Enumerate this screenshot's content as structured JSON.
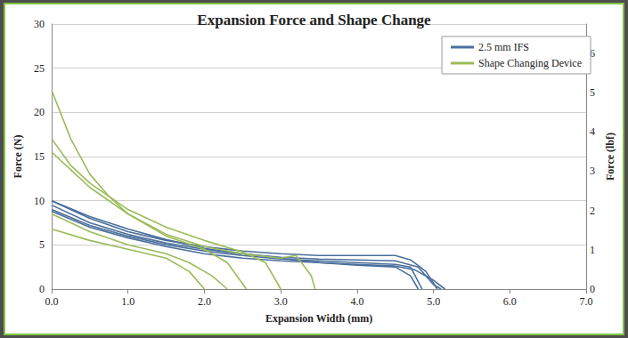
{
  "chart_data": {
    "type": "line",
    "title": "Expansion Force and Shape Change",
    "x_label": "Expansion Width (mm)",
    "y_label": "Force (N)",
    "y2_label": "Force (lbf)",
    "xlim": [
      0,
      7
    ],
    "xticks": [
      {
        "value": 0,
        "label": "0.0"
      },
      {
        "value": 1,
        "label": "1.0"
      },
      {
        "value": 2,
        "label": "2.0"
      },
      {
        "value": 3,
        "label": "3.0"
      },
      {
        "value": 4,
        "label": "4.0"
      },
      {
        "value": 5,
        "label": "5.0"
      },
      {
        "value": 6,
        "label": "6.0"
      },
      {
        "value": 7,
        "label": "7.0"
      }
    ],
    "ylim": [
      0,
      30
    ],
    "yticks": [
      0,
      5,
      10,
      15,
      20,
      25,
      30
    ],
    "y2lim": [
      0,
      6.744
    ],
    "y2ticks": [
      0,
      1,
      2,
      3,
      4,
      5,
      6
    ],
    "grid": true,
    "legend": "upper right",
    "series": [
      {
        "name": "2.5 mm IFS",
        "color": "#4a6f9b",
        "x": [
          0,
          0.5,
          1,
          1.5,
          2,
          2.5,
          3,
          3.5,
          4,
          4.5,
          4.7,
          4.9,
          5.05
        ],
        "values": [
          10,
          8,
          6.5,
          5.5,
          4.8,
          4.3,
          4,
          3.8,
          3.8,
          3.8,
          3.3,
          2,
          0
        ]
      },
      {
        "name": "2.5 mm IFS",
        "color": "#4a6f9b",
        "x": [
          0,
          0.5,
          1,
          1.5,
          2,
          2.5,
          3,
          3.5,
          4,
          4.5,
          4.8,
          5.0,
          5.1
        ],
        "values": [
          9.5,
          7.5,
          6.2,
          5.2,
          4.5,
          4,
          3.6,
          3.4,
          3.3,
          3.2,
          2.5,
          0.5,
          0
        ]
      },
      {
        "name": "2.5 mm IFS",
        "color": "#4a6f9b",
        "x": [
          0,
          0.5,
          1,
          1.5,
          2,
          2.5,
          3,
          3.5,
          4,
          4.5,
          4.7,
          4.85
        ],
        "values": [
          9,
          7.2,
          6,
          5,
          4.3,
          3.8,
          3.4,
          3.2,
          3,
          2.8,
          2.5,
          0
        ]
      },
      {
        "name": "2.5 mm IFS",
        "color": "#4a6f9b",
        "x": [
          0,
          0.5,
          1,
          1.5,
          2,
          2.5,
          3,
          3.5,
          4,
          4.5,
          4.75,
          5.0,
          5.15
        ],
        "values": [
          10,
          8.2,
          6.8,
          5.6,
          4.6,
          4,
          3.5,
          3,
          2.8,
          2.6,
          2.2,
          1,
          0
        ]
      },
      {
        "name": "2.5 mm IFS",
        "color": "#4a6f9b",
        "x": [
          0,
          0.5,
          1,
          1.5,
          2,
          2.5,
          3,
          3.5,
          4,
          4.5,
          4.7,
          4.8
        ],
        "values": [
          8.8,
          7,
          5.8,
          4.8,
          4,
          3.5,
          3.2,
          3,
          2.7,
          2.5,
          1.5,
          0
        ]
      },
      {
        "name": "Shape Changing Device",
        "color": "#9bbb59",
        "x": [
          0,
          0.25,
          0.5,
          0.75,
          1,
          1.5,
          2,
          2.5,
          3,
          3.2,
          3.4,
          3.45
        ],
        "values": [
          22.5,
          17,
          13,
          10.5,
          8.5,
          6.2,
          4.8,
          4,
          3.5,
          3.8,
          1.5,
          0
        ]
      },
      {
        "name": "Shape Changing Device",
        "color": "#9bbb59",
        "x": [
          0,
          0.25,
          0.5,
          1,
          1.5,
          2,
          2.5,
          2.8,
          3.0
        ],
        "values": [
          17,
          14,
          12,
          9,
          7,
          5.5,
          4.2,
          3,
          0
        ]
      },
      {
        "name": "Shape Changing Device",
        "color": "#9bbb59",
        "x": [
          0,
          0.25,
          0.5,
          1,
          1.5,
          2,
          2.3,
          2.55
        ],
        "values": [
          15.5,
          13.5,
          11.5,
          8.5,
          6,
          4.5,
          3,
          0
        ]
      },
      {
        "name": "Shape Changing Device",
        "color": "#9bbb59",
        "x": [
          0,
          0.5,
          1,
          1.5,
          1.8,
          2.1,
          2.3
        ],
        "values": [
          8.5,
          6.5,
          5,
          4,
          3,
          1.5,
          0
        ]
      },
      {
        "name": "Shape Changing Device",
        "color": "#9bbb59",
        "x": [
          0,
          0.5,
          1,
          1.5,
          1.8,
          2.0
        ],
        "values": [
          6.8,
          5.5,
          4.5,
          3.5,
          2,
          0
        ]
      }
    ]
  }
}
